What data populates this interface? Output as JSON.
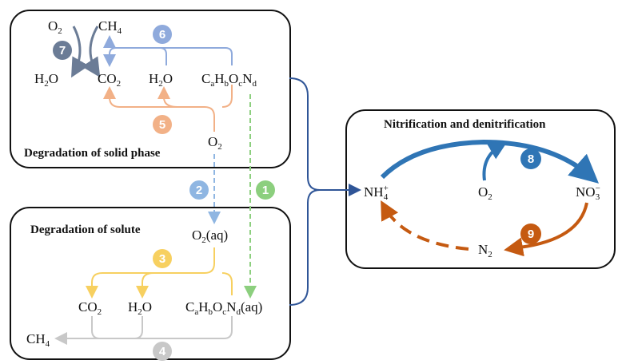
{
  "panels": {
    "solid": {
      "title": "Degradation of solid phase"
    },
    "solute": {
      "title": "Degradation of solute"
    },
    "nitrification": {
      "title": "Nitrification and denitrification"
    }
  },
  "species": {
    "o2_top": "O",
    "ch4_top": "CH",
    "h2o_top_left": "H",
    "co2_top": "CO",
    "h2o_top": "H",
    "substrate_top": "C",
    "o2_mid": "O",
    "o2_aq": "O",
    "co2_bottom": "CO",
    "h2o_bottom": "H",
    "substrate_bottom": "C",
    "ch4_bottom": "CH",
    "nh4": "NH",
    "o2_right": "O",
    "no3": "NO",
    "n2": "N"
  },
  "step_labels": [
    "1",
    "2",
    "3",
    "4",
    "5",
    "6",
    "7",
    "8",
    "9"
  ],
  "colors": {
    "s1": "#8ccf7e",
    "s2": "#8fb6e2",
    "s3": "#f7d060",
    "s4": "#c8c8c8",
    "s5": "#f2b187",
    "s6": "#8faadc",
    "s7": "#6b7c96",
    "s8": "#2f75b5",
    "s9": "#c55a11",
    "bracket": "#2f5597"
  }
}
